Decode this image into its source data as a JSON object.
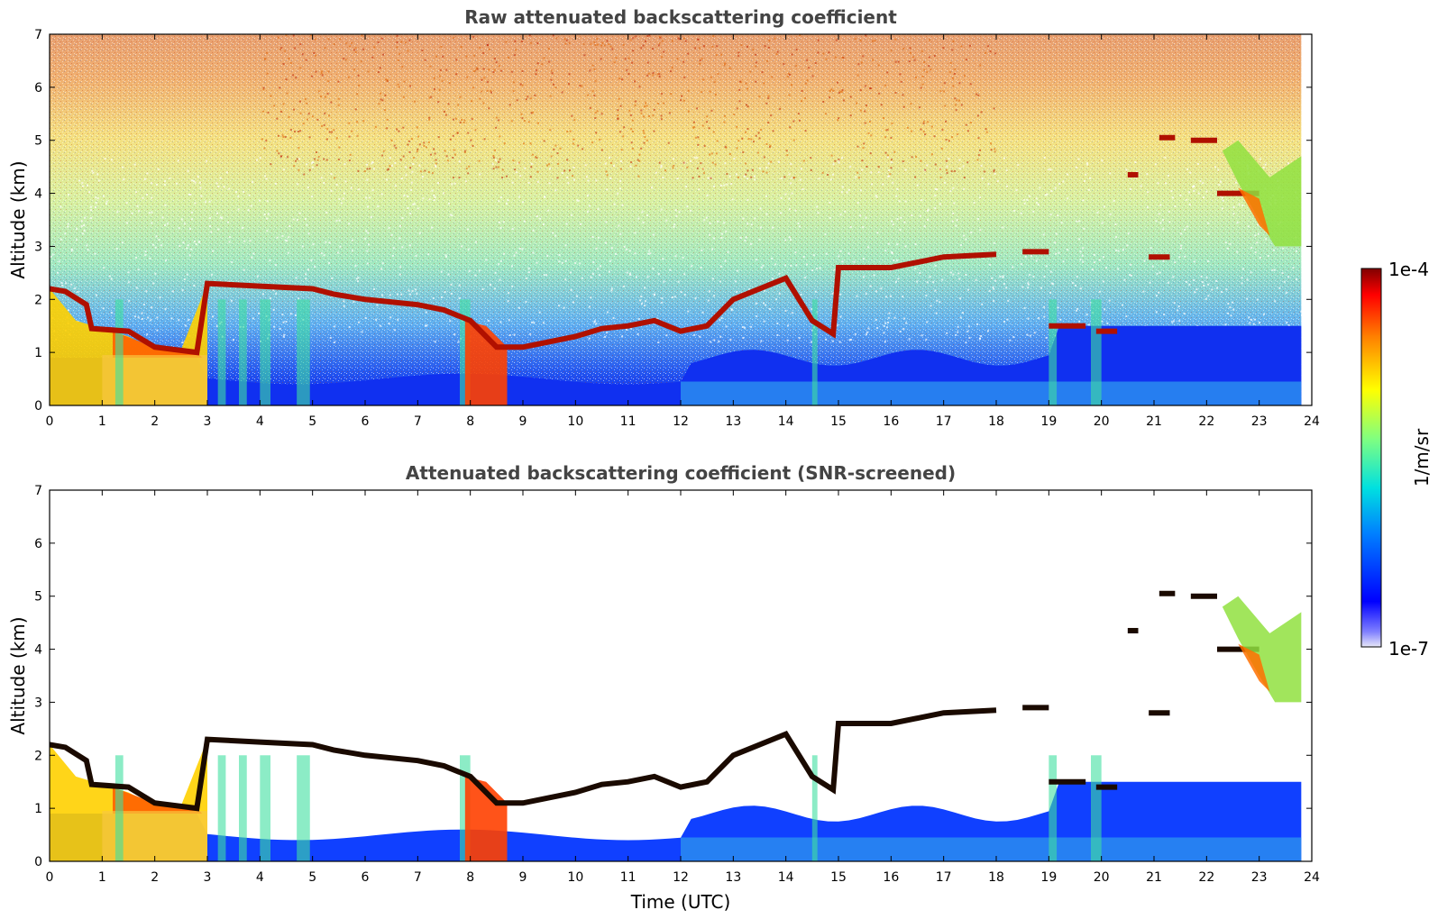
{
  "chart_data": [
    {
      "type": "heatmap",
      "title": "Raw attenuated backscattering coefficient",
      "xlabel": "",
      "ylabel": "Altitude (km)",
      "xlim": [
        0,
        24
      ],
      "ylim": [
        0,
        7
      ],
      "xticks": [
        "0",
        "1",
        "2",
        "3",
        "4",
        "5",
        "6",
        "7",
        "8",
        "9",
        "10",
        "11",
        "12",
        "13",
        "14",
        "15",
        "16",
        "17",
        "18",
        "19",
        "20",
        "21",
        "22",
        "23",
        "24"
      ],
      "yticks": [
        "0",
        "1",
        "2",
        "3",
        "4",
        "5",
        "6",
        "7"
      ],
      "screened": false,
      "cloud_base": [
        {
          "x": 0.0,
          "y": 2.2
        },
        {
          "x": 0.3,
          "y": 2.15
        },
        {
          "x": 0.7,
          "y": 1.9
        },
        {
          "x": 0.8,
          "y": 1.45
        },
        {
          "x": 1.5,
          "y": 1.4
        },
        {
          "x": 2.0,
          "y": 1.1
        },
        {
          "x": 2.8,
          "y": 1.0
        },
        {
          "x": 3.0,
          "y": 2.3
        },
        {
          "x": 4.0,
          "y": 2.25
        },
        {
          "x": 5.0,
          "y": 2.2
        },
        {
          "x": 5.4,
          "y": 2.1
        },
        {
          "x": 6.0,
          "y": 2.0
        },
        {
          "x": 7.0,
          "y": 1.9
        },
        {
          "x": 7.5,
          "y": 1.8
        },
        {
          "x": 8.0,
          "y": 1.6
        },
        {
          "x": 8.5,
          "y": 1.1
        },
        {
          "x": 9.0,
          "y": 1.1
        },
        {
          "x": 10.0,
          "y": 1.3
        },
        {
          "x": 10.5,
          "y": 1.45
        },
        {
          "x": 11.0,
          "y": 1.5
        },
        {
          "x": 11.5,
          "y": 1.6
        },
        {
          "x": 12.0,
          "y": 1.4
        },
        {
          "x": 12.5,
          "y": 1.5
        },
        {
          "x": 13.0,
          "y": 2.0
        },
        {
          "x": 14.0,
          "y": 2.4
        },
        {
          "x": 14.5,
          "y": 1.6
        },
        {
          "x": 14.9,
          "y": 1.35
        },
        {
          "x": 15.0,
          "y": 2.6
        },
        {
          "x": 16.0,
          "y": 2.6
        },
        {
          "x": 17.0,
          "y": 2.8
        },
        {
          "x": 18.0,
          "y": 2.85
        }
      ],
      "cloud_segments": [
        {
          "x": [
            18.5,
            19.0
          ],
          "y": 2.9
        },
        {
          "x": 19.0,
          "y": 1.5,
          "x2": 19.7
        },
        {
          "x": [
            19.9,
            20.3
          ],
          "y": 1.4
        },
        {
          "x": [
            20.5,
            20.7
          ],
          "y": 4.35
        },
        {
          "x": [
            20.9,
            21.3
          ],
          "y": 2.8
        },
        {
          "x": [
            21.1,
            21.4
          ],
          "y": 5.05
        },
        {
          "x": [
            21.7,
            22.2
          ],
          "y": 5.0
        },
        {
          "x": [
            22.2,
            23.0
          ],
          "y": 4.0
        }
      ]
    },
    {
      "type": "heatmap",
      "title": "Attenuated backscattering coefficient (SNR-screened)",
      "xlabel": "Time (UTC)",
      "ylabel": "Altitude (km)",
      "xlim": [
        0,
        24
      ],
      "ylim": [
        0,
        7
      ],
      "xticks": [
        "0",
        "1",
        "2",
        "3",
        "4",
        "5",
        "6",
        "7",
        "8",
        "9",
        "10",
        "11",
        "12",
        "13",
        "14",
        "15",
        "16",
        "17",
        "18",
        "19",
        "20",
        "21",
        "22",
        "23",
        "24"
      ],
      "yticks": [
        "0",
        "1",
        "2",
        "3",
        "4",
        "5",
        "6",
        "7"
      ],
      "screened": true
    }
  ],
  "colorbar": {
    "label": "1/m/sr",
    "max_label": "1e-4",
    "min_label": "1e-7",
    "colormap": "jet",
    "scale": "log",
    "range": [
      1e-07,
      0.0001
    ]
  }
}
